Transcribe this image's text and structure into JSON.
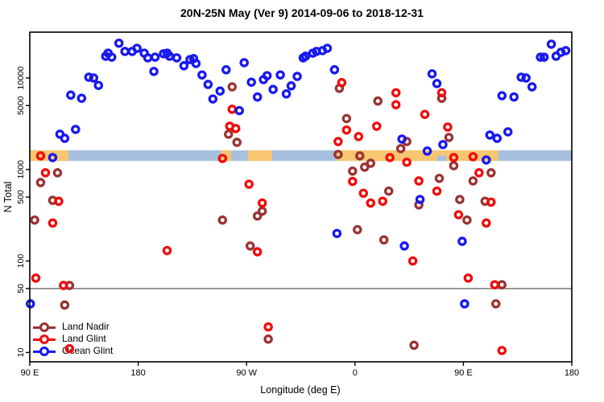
{
  "chart_data": {
    "type": "scatter",
    "title": "20N-25N May (Ver 9)   2014-09-06 to 2018-12-31",
    "xlabel": "Longitude (deg E)",
    "ylabel": "N Total",
    "x_axis": {
      "note": "axis spans 450 degrees eastward starting at 90E; tick positions are degrees east of 90E",
      "ticks": [
        {
          "deg": 0,
          "label": "90 E"
        },
        {
          "deg": 90,
          "label": "180"
        },
        {
          "deg": 180,
          "label": "90 W"
        },
        {
          "deg": 270,
          "label": "0"
        },
        {
          "deg": 360,
          "label": "90 E"
        },
        {
          "deg": 450,
          "label": "180"
        }
      ]
    },
    "y_axis": {
      "scale": "log10",
      "range": [
        8.5,
        28000
      ],
      "ticks": [
        {
          "value": 10000,
          "label": "10000"
        },
        {
          "value": 5000,
          "label": "5000"
        },
        {
          "value": 1000,
          "label": "1000"
        },
        {
          "value": 500,
          "label": "500"
        },
        {
          "value": 100,
          "label": "100"
        },
        {
          "value": 50,
          "label": "50"
        },
        {
          "value": 10,
          "label": "10"
        }
      ]
    },
    "reference_line": {
      "value": 50,
      "color": "#8c8c8c"
    },
    "map_band": {
      "y_value_range": [
        1240,
        1620
      ],
      "ocean_color": "#a8c0dd",
      "land_color": "#f8c671",
      "land_segments_deg": [
        [
          0,
          32
        ],
        [
          159,
          167
        ],
        [
          181,
          201
        ],
        [
          255,
          389
        ]
      ],
      "ocean_notches_deg": [
        [
          338,
          346
        ]
      ]
    },
    "legend_position": "bottom-left",
    "series": [
      {
        "name": "Land Nadir",
        "color": "#9a3333",
        "points": [
          [
            4,
            280
          ],
          [
            9,
            720
          ],
          [
            19,
            460
          ],
          [
            23,
            920
          ],
          [
            29,
            33
          ],
          [
            33,
            54
          ],
          [
            160,
            280
          ],
          [
            165,
            2430
          ],
          [
            168,
            8000
          ],
          [
            172,
            1980
          ],
          [
            183,
            146
          ],
          [
            189,
            310
          ],
          [
            193,
            350
          ],
          [
            198,
            14
          ],
          [
            256,
            1460
          ],
          [
            257,
            7700
          ],
          [
            263,
            3600
          ],
          [
            268,
            960
          ],
          [
            272,
            220
          ],
          [
            274,
            1410
          ],
          [
            278,
            1060
          ],
          [
            283,
            1170
          ],
          [
            289,
            5600
          ],
          [
            294,
            170
          ],
          [
            298,
            580
          ],
          [
            308,
            1690
          ],
          [
            313,
            2020
          ],
          [
            319,
            12
          ],
          [
            323,
            410
          ],
          [
            340,
            800
          ],
          [
            342,
            6000
          ],
          [
            348,
            2240
          ],
          [
            352,
            1100
          ],
          [
            357,
            470
          ],
          [
            363,
            280
          ],
          [
            368,
            750
          ],
          [
            378,
            450
          ],
          [
            383,
            920
          ],
          [
            387,
            34
          ],
          [
            392,
            55
          ]
        ]
      },
      {
        "name": "Land Glint",
        "color": "#f20c0c",
        "points": [
          [
            9,
            1410
          ],
          [
            13,
            920
          ],
          [
            24,
            450
          ],
          [
            19,
            260
          ],
          [
            5,
            65
          ],
          [
            28,
            54
          ],
          [
            33,
            11
          ],
          [
            114,
            130
          ],
          [
            160,
            1320
          ],
          [
            166,
            2970
          ],
          [
            168,
            4550
          ],
          [
            171,
            2800
          ],
          [
            182,
            690
          ],
          [
            189,
            126
          ],
          [
            193,
            430
          ],
          [
            198,
            19
          ],
          [
            256,
            2020
          ],
          [
            259,
            8900
          ],
          [
            263,
            2700
          ],
          [
            268,
            740
          ],
          [
            273,
            2290
          ],
          [
            277,
            550
          ],
          [
            283,
            430
          ],
          [
            288,
            2970
          ],
          [
            293,
            450
          ],
          [
            299,
            1350
          ],
          [
            304,
            6900
          ],
          [
            304,
            5100
          ],
          [
            313,
            1200
          ],
          [
            318,
            100
          ],
          [
            323,
            750
          ],
          [
            328,
            4000
          ],
          [
            338,
            580
          ],
          [
            342,
            6900
          ],
          [
            347,
            2910
          ],
          [
            352,
            1350
          ],
          [
            356,
            320
          ],
          [
            364,
            65
          ],
          [
            368,
            1380
          ],
          [
            373,
            920
          ],
          [
            379,
            260
          ],
          [
            383,
            440
          ],
          [
            386,
            55
          ],
          [
            392,
            10.5
          ]
        ]
      },
      {
        "name": "Ocean Glint",
        "color": "#1818f0",
        "points": [
          [
            0.5,
            34
          ],
          [
            19,
            1350
          ],
          [
            25,
            2430
          ],
          [
            29,
            2190
          ],
          [
            34,
            6500
          ],
          [
            38,
            2740
          ],
          [
            43,
            6000
          ],
          [
            49,
            10200
          ],
          [
            53,
            10000
          ],
          [
            57,
            8300
          ],
          [
            63,
            17300
          ],
          [
            65,
            18700
          ],
          [
            68,
            16900
          ],
          [
            74,
            24000
          ],
          [
            79,
            19500
          ],
          [
            85,
            19500
          ],
          [
            89,
            21100
          ],
          [
            95,
            18700
          ],
          [
            98,
            16600
          ],
          [
            103,
            11800
          ],
          [
            104,
            16900
          ],
          [
            111,
            18400
          ],
          [
            114,
            18700
          ],
          [
            116,
            17300
          ],
          [
            122,
            16600
          ],
          [
            128,
            13600
          ],
          [
            133,
            15900
          ],
          [
            136,
            16300
          ],
          [
            138,
            14400
          ],
          [
            143,
            10800
          ],
          [
            148,
            8500
          ],
          [
            152,
            5900
          ],
          [
            158,
            7200
          ],
          [
            163,
            12300
          ],
          [
            174,
            4400
          ],
          [
            178,
            14700
          ],
          [
            184,
            9000
          ],
          [
            189,
            6200
          ],
          [
            194,
            9600
          ],
          [
            197,
            10600
          ],
          [
            202,
            7500
          ],
          [
            208,
            10800
          ],
          [
            213,
            6700
          ],
          [
            217,
            8200
          ],
          [
            222,
            10400
          ],
          [
            227,
            16600
          ],
          [
            229,
            17300
          ],
          [
            235,
            18700
          ],
          [
            238,
            19500
          ],
          [
            243,
            19900
          ],
          [
            247,
            21100
          ],
          [
            253,
            12300
          ],
          [
            255,
            200
          ],
          [
            309,
            2150
          ],
          [
            311,
            146
          ],
          [
            324,
            470
          ],
          [
            330,
            1590
          ],
          [
            334,
            11100
          ],
          [
            338,
            8700
          ],
          [
            343,
            1870
          ],
          [
            359,
            164
          ],
          [
            361,
            34
          ],
          [
            379,
            1270
          ],
          [
            382,
            2380
          ],
          [
            388,
            2190
          ],
          [
            392,
            6400
          ],
          [
            397,
            2580
          ],
          [
            402,
            6200
          ],
          [
            408,
            10200
          ],
          [
            412,
            10000
          ],
          [
            417,
            8000
          ],
          [
            424,
            16900
          ],
          [
            427,
            16900
          ],
          [
            433,
            23400
          ],
          [
            437,
            17300
          ],
          [
            441,
            19100
          ],
          [
            445,
            19900
          ]
        ]
      }
    ]
  }
}
